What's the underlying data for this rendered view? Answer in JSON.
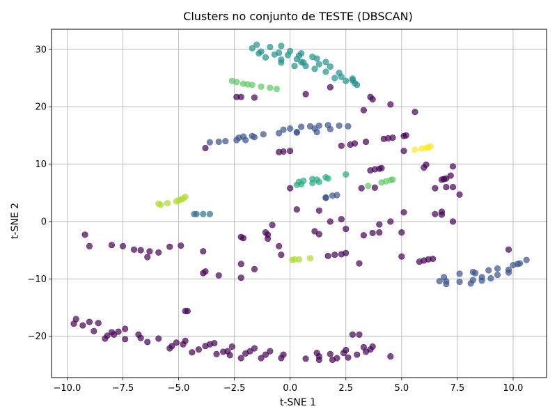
{
  "chart_data": {
    "type": "scatter",
    "title": "Clusters no conjunto de TESTE (DBSCAN)",
    "xlabel": "t-SNE 1",
    "ylabel": "t-SNE 2",
    "xlim": [
      -10.7,
      11.5
    ],
    "ylim": [
      -27.2,
      33.5
    ],
    "xticks": [
      -10.0,
      -7.5,
      -5.0,
      -2.5,
      0.0,
      2.5,
      5.0,
      7.5,
      10.0
    ],
    "xtick_labels": [
      "−10.0",
      "−7.5",
      "−5.0",
      "−2.5",
      "0.0",
      "2.5",
      "5.0",
      "7.5",
      "10.0"
    ],
    "yticks": [
      -20,
      -10,
      0,
      10,
      20,
      30
    ],
    "ytick_labels": [
      "−20",
      "−10",
      "0",
      "10",
      "20",
      "30"
    ],
    "grid": true,
    "legend": "none",
    "marker_alpha": 0.7,
    "series": [
      {
        "color": "#440154",
        "points": [
          [
            -9.2,
            -2.3
          ],
          [
            -9.0,
            -4.3
          ],
          [
            -8.0,
            -4.1
          ],
          [
            -7.5,
            -4.3
          ],
          [
            -7.0,
            -4.9
          ],
          [
            -6.7,
            -5.0
          ],
          [
            -6.3,
            -5.2
          ],
          [
            -6.4,
            -6.2
          ],
          [
            -5.9,
            -5.4
          ],
          [
            -5.4,
            -4.4
          ],
          [
            -4.9,
            -4.2
          ],
          [
            -3.9,
            -5.2
          ],
          [
            -3.8,
            -8.7
          ],
          [
            -3.9,
            -9.0
          ],
          [
            -3.2,
            -9.4
          ],
          [
            -2.2,
            -2.7
          ],
          [
            -2.1,
            -2.9
          ],
          [
            -2.2,
            -7.4
          ],
          [
            -2.2,
            -9.8
          ],
          [
            -1.6,
            -8.3
          ],
          [
            -1.1,
            -1.9
          ],
          [
            -1.0,
            -2.3
          ],
          [
            -1.0,
            -3.0
          ],
          [
            -0.8,
            -0.6
          ],
          [
            -0.5,
            -4.3
          ],
          [
            -0.4,
            -5.8
          ],
          [
            1.1,
            -1.7
          ],
          [
            1.3,
            -2.2
          ],
          [
            1.3,
            1.9
          ],
          [
            1.8,
            0.0
          ],
          [
            2.3,
            0.4
          ],
          [
            2.5,
            -1.3
          ],
          [
            1.7,
            -6.0
          ],
          [
            2.0,
            -5.8
          ],
          [
            2.3,
            -5.7
          ],
          [
            2.5,
            -5.5
          ],
          [
            3.1,
            -7.3
          ],
          [
            3.3,
            -2.4
          ],
          [
            3.7,
            -2.0
          ],
          [
            4.0,
            -0.5
          ],
          [
            4.0,
            -1.9
          ],
          [
            4.5,
            0.0
          ],
          [
            5.0,
            -1.9
          ],
          [
            5.0,
            -6.1
          ],
          [
            5.1,
            1.6
          ],
          [
            5.8,
            -7.0
          ],
          [
            6.0,
            -6.8
          ],
          [
            6.2,
            -6.6
          ],
          [
            6.4,
            -6.5
          ],
          [
            6.5,
            1.3
          ],
          [
            6.8,
            1.7
          ],
          [
            6.8,
            1.2
          ],
          [
            7.3,
            0.0
          ],
          [
            9.8,
            -4.9
          ],
          [
            -9.6,
            -17.0
          ],
          [
            -9.3,
            -18.1
          ],
          [
            -9.0,
            -17.5
          ],
          [
            -8.8,
            -19.1
          ],
          [
            -8.6,
            -17.7
          ],
          [
            -8.3,
            -20.4
          ],
          [
            -8.2,
            -19.9
          ],
          [
            -7.9,
            -19.7
          ],
          [
            -7.7,
            -19.2
          ],
          [
            -7.4,
            -18.7
          ],
          [
            -7.4,
            -20.5
          ],
          [
            -6.8,
            -19.7
          ],
          [
            -6.7,
            -20.3
          ],
          [
            -6.4,
            -21.0
          ],
          [
            -5.9,
            -20.4
          ],
          [
            -5.4,
            -22.1
          ],
          [
            -5.3,
            -21.7
          ],
          [
            -5.1,
            -21.1
          ],
          [
            -4.8,
            -21.4
          ],
          [
            -4.7,
            -20.8
          ],
          [
            -4.4,
            -22.8
          ],
          [
            -4.1,
            -22.3
          ],
          [
            -3.8,
            -21.7
          ],
          [
            -3.6,
            -21.4
          ],
          [
            -3.4,
            -21.2
          ],
          [
            -3.3,
            -23.1
          ],
          [
            -3.0,
            -22.7
          ],
          [
            -2.8,
            -22.6
          ],
          [
            -2.7,
            -23.3
          ],
          [
            -2.6,
            -21.8
          ],
          [
            -2.2,
            -23.8
          ],
          [
            -2.0,
            -23.0
          ],
          [
            -1.8,
            -22.6
          ],
          [
            -1.6,
            -22.1
          ],
          [
            -1.3,
            -23.8
          ],
          [
            -1.1,
            -23.2
          ],
          [
            -0.9,
            -22.6
          ],
          [
            -0.4,
            -23.8
          ],
          [
            -0.3,
            -23.2
          ],
          [
            0.7,
            -23.9
          ],
          [
            1.2,
            -22.9
          ],
          [
            1.3,
            -23.5
          ],
          [
            1.3,
            -24.1
          ],
          [
            1.8,
            -23.1
          ],
          [
            1.9,
            -24.1
          ],
          [
            2.1,
            -23.8
          ],
          [
            2.4,
            -22.9
          ],
          [
            2.5,
            -22.4
          ],
          [
            2.6,
            -23.7
          ],
          [
            3.0,
            -23.2
          ],
          [
            3.3,
            -21.9
          ],
          [
            3.4,
            -22.7
          ],
          [
            3.6,
            -22.3
          ],
          [
            3.7,
            -21.8
          ],
          [
            4.5,
            -23.5
          ],
          [
            -9.7,
            -17.8
          ],
          [
            -8.0,
            -19.3
          ],
          [
            2.8,
            -19.7
          ],
          [
            3.1,
            -19.7
          ],
          [
            -4.7,
            -15.6
          ],
          [
            -4.6,
            -15.6
          ],
          [
            -3.8,
            12.8
          ],
          [
            -2.4,
            21.7
          ],
          [
            -2.2,
            21.7
          ],
          [
            -1.6,
            21.6
          ],
          [
            -0.5,
            12.1
          ],
          [
            -0.3,
            12.2
          ],
          [
            0.0,
            12.3
          ],
          [
            0.3,
            2.1
          ],
          [
            0.0,
            5.8
          ],
          [
            0.7,
            22.2
          ],
          [
            1.8,
            23.4
          ],
          [
            2.3,
            13.2
          ],
          [
            2.7,
            13.4
          ],
          [
            2.9,
            13.6
          ],
          [
            3.3,
            19.4
          ],
          [
            3.4,
            13.9
          ],
          [
            3.6,
            21.7
          ],
          [
            3.7,
            21.3
          ],
          [
            3.6,
            8.9
          ],
          [
            3.8,
            9.1
          ],
          [
            4.0,
            9.2
          ],
          [
            4.1,
            9.3
          ],
          [
            3.2,
            5.8
          ],
          [
            3.8,
            5.9
          ],
          [
            4.2,
            14.4
          ],
          [
            4.4,
            14.5
          ],
          [
            4.5,
            20.4
          ],
          [
            4.6,
            14.6
          ],
          [
            5.1,
            12.3
          ],
          [
            5.1,
            14.9
          ],
          [
            5.2,
            15.0
          ],
          [
            5.6,
            19.1
          ],
          [
            6.0,
            9.4
          ],
          [
            6.1,
            9.9
          ],
          [
            6.5,
            5.8
          ],
          [
            6.8,
            7.3
          ],
          [
            6.9,
            7.4
          ],
          [
            7.0,
            6.0
          ],
          [
            7.0,
            7.5
          ],
          [
            7.2,
            8.0
          ],
          [
            7.3,
            9.6
          ],
          [
            7.3,
            6.0
          ],
          [
            7.6,
            4.7
          ]
        ]
      },
      {
        "color": "#3b528b",
        "points": [
          [
            -3.6,
            13.8
          ],
          [
            -3.2,
            13.9
          ],
          [
            -2.9,
            14.0
          ],
          [
            -2.4,
            14.2
          ],
          [
            -2.3,
            14.6
          ],
          [
            -2.1,
            14.8
          ],
          [
            -2.0,
            14.2
          ],
          [
            -1.7,
            14.9
          ],
          [
            -1.6,
            14.7
          ],
          [
            -1.2,
            15.2
          ],
          [
            -0.5,
            15.4
          ],
          [
            -0.3,
            16.0
          ],
          [
            0.0,
            16.2
          ],
          [
            0.3,
            15.5
          ],
          [
            0.3,
            15.6
          ],
          [
            0.5,
            16.5
          ],
          [
            0.9,
            16.6
          ],
          [
            1.1,
            16.2
          ],
          [
            1.3,
            16.7
          ],
          [
            1.2,
            15.6
          ],
          [
            1.7,
            16.8
          ],
          [
            1.8,
            16.1
          ],
          [
            2.2,
            16.7
          ],
          [
            2.6,
            16.6
          ],
          [
            1.9,
            4.5
          ],
          [
            2.1,
            4.6
          ],
          [
            1.6,
            4.2
          ],
          [
            1.6,
            4.1
          ],
          [
            6.7,
            -10.4
          ],
          [
            6.9,
            -9.7
          ],
          [
            7.0,
            -10.4
          ],
          [
            7.0,
            -10.9
          ],
          [
            7.6,
            -9.1
          ],
          [
            7.6,
            -10.5
          ],
          [
            8.1,
            -10.8
          ],
          [
            8.2,
            -8.8
          ],
          [
            8.2,
            -10.2
          ],
          [
            8.3,
            -9.0
          ],
          [
            8.6,
            -9.7
          ],
          [
            8.6,
            -10.3
          ],
          [
            8.9,
            -8.5
          ],
          [
            9.0,
            -9.9
          ],
          [
            9.3,
            -8.2
          ],
          [
            9.3,
            -9.3
          ],
          [
            9.8,
            -8.4
          ],
          [
            9.8,
            -8.9
          ],
          [
            10.2,
            -7.4
          ],
          [
            10.3,
            -7.3
          ],
          [
            10.6,
            -6.7
          ],
          [
            10.0,
            -7.6
          ]
        ]
      },
      {
        "color": "#2c728e",
        "points": [
          [
            -4.3,
            1.3
          ],
          [
            -4.2,
            1.3
          ],
          [
            -3.9,
            1.3
          ],
          [
            -3.6,
            1.3
          ]
        ]
      },
      {
        "color": "#21918c",
        "points": [
          [
            -1.7,
            30.2
          ],
          [
            -1.5,
            30.8
          ],
          [
            -1.4,
            29.3
          ],
          [
            -1.3,
            29.6
          ],
          [
            -1.1,
            28.6
          ],
          [
            -0.9,
            30.4
          ],
          [
            -0.7,
            29.1
          ],
          [
            -0.5,
            29.4
          ],
          [
            -0.4,
            30.6
          ],
          [
            -0.4,
            27.7
          ],
          [
            -0.4,
            28.2
          ],
          [
            -0.1,
            29.0
          ],
          [
            0.0,
            29.7
          ],
          [
            0.2,
            27.1
          ],
          [
            0.3,
            28.3
          ],
          [
            0.4,
            28.9
          ],
          [
            0.5,
            27.8
          ],
          [
            0.5,
            29.3
          ],
          [
            0.6,
            27.7
          ],
          [
            0.7,
            27.1
          ],
          [
            1.0,
            28.7
          ],
          [
            1.1,
            26.6
          ],
          [
            1.2,
            28.4
          ],
          [
            1.3,
            27.4
          ],
          [
            1.6,
            27.8
          ],
          [
            1.6,
            26.1
          ],
          [
            1.8,
            27.0
          ],
          [
            2.0,
            25.0
          ],
          [
            2.2,
            25.9
          ],
          [
            2.3,
            25.2
          ],
          [
            2.5,
            24.5
          ],
          [
            2.8,
            24.9
          ],
          [
            2.8,
            24.6
          ],
          [
            2.9,
            24.1
          ],
          [
            3.0,
            23.8
          ]
        ]
      },
      {
        "color": "#27ad81",
        "points": [
          [
            0.3,
            6.4
          ],
          [
            0.4,
            6.9
          ],
          [
            0.5,
            6.5
          ],
          [
            0.6,
            7.1
          ],
          [
            1.0,
            6.7
          ],
          [
            1.0,
            7.4
          ],
          [
            1.2,
            7.3
          ],
          [
            1.3,
            6.9
          ],
          [
            1.6,
            7.7
          ],
          [
            1.7,
            7.5
          ],
          [
            2.5,
            8.2
          ]
        ]
      },
      {
        "color": "#5ec962",
        "points": [
          [
            -2.6,
            24.5
          ],
          [
            -2.4,
            24.3
          ],
          [
            -2.1,
            24.0
          ],
          [
            -1.9,
            23.9
          ],
          [
            -1.7,
            23.8
          ],
          [
            -1.3,
            23.5
          ],
          [
            -0.9,
            23.3
          ],
          [
            -0.6,
            23.1
          ],
          [
            3.5,
            6.2
          ],
          [
            4.1,
            6.8
          ],
          [
            4.3,
            7.0
          ],
          [
            4.5,
            7.2
          ],
          [
            4.6,
            7.3
          ]
        ]
      },
      {
        "color": "#addc30",
        "points": [
          [
            -5.8,
            2.9
          ],
          [
            -5.5,
            3.2
          ],
          [
            -5.1,
            3.5
          ],
          [
            -4.9,
            3.8
          ],
          [
            -4.8,
            4.0
          ],
          [
            -4.7,
            4.3
          ],
          [
            -5.9,
            3.1
          ],
          [
            -5.0,
            3.7
          ],
          [
            0.1,
            -6.7
          ],
          [
            0.2,
            -6.6
          ],
          [
            0.4,
            -6.6
          ],
          [
            0.9,
            -6.4
          ]
        ]
      },
      {
        "color": "#fde725",
        "points": [
          [
            5.6,
            12.5
          ],
          [
            5.9,
            12.7
          ],
          [
            6.1,
            12.8
          ],
          [
            6.2,
            12.9
          ],
          [
            6.3,
            13.1
          ]
        ]
      }
    ]
  }
}
